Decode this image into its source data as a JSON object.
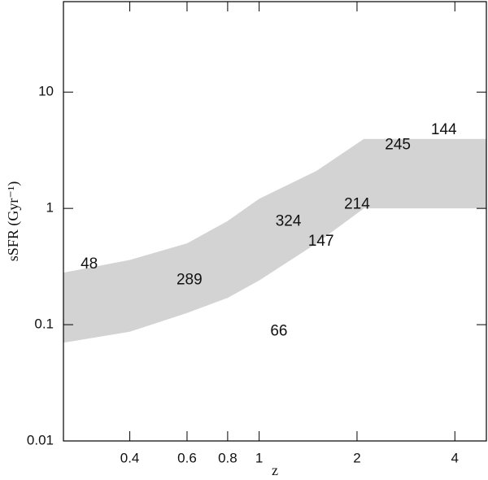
{
  "chart_data": {
    "type": "area",
    "xlabel": "z",
    "ylabel": "sSFR (Gyr⁻¹)",
    "xscale": "log",
    "yscale": "log",
    "xlim": [
      0.25,
      5
    ],
    "ylim": [
      0.01,
      60
    ],
    "xticks": [
      0.4,
      0.6,
      0.8,
      1,
      2,
      4
    ],
    "yticks": [
      0.01,
      0.1,
      1,
      10
    ],
    "color": "#d3d3d3",
    "x": [
      0.25,
      0.4,
      0.6,
      0.8,
      1,
      1.5,
      2.1,
      5
    ],
    "upper": [
      0.28,
      0.36,
      0.5,
      0.78,
      1.21,
      2.1,
      3.96,
      3.96
    ],
    "lower": [
      0.07,
      0.087,
      0.126,
      0.17,
      0.24,
      0.5,
      1,
      1
    ],
    "annotations": [
      {
        "text": "48",
        "x": 0.3,
        "y": 0.33
      },
      {
        "text": "289",
        "x": 0.61,
        "y": 0.24
      },
      {
        "text": "66",
        "x": 1.15,
        "y": 0.087
      },
      {
        "text": "324",
        "x": 1.23,
        "y": 0.77
      },
      {
        "text": "147",
        "x": 1.55,
        "y": 0.52
      },
      {
        "text": "214",
        "x": 2.0,
        "y": 1.08
      },
      {
        "text": "245",
        "x": 2.67,
        "y": 3.5
      },
      {
        "text": "144",
        "x": 3.7,
        "y": 4.7
      }
    ]
  }
}
